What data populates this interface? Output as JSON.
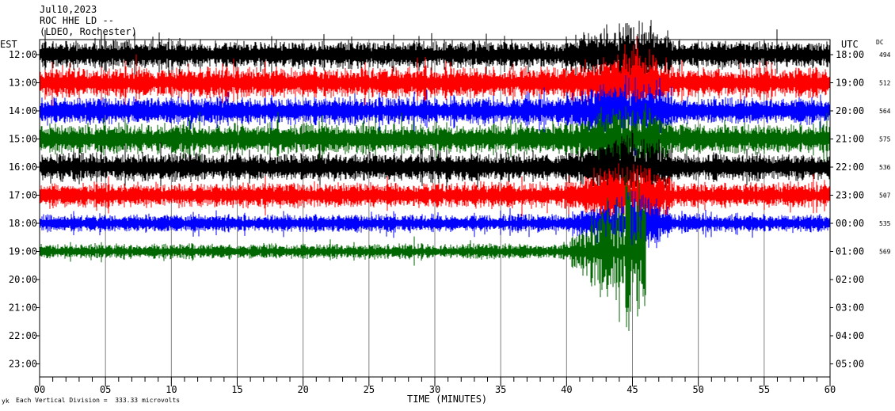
{
  "header": {
    "line1": "Jul10,2023",
    "line2": "ROC HHE LD --",
    "line3": "(LDEO, Rochester)"
  },
  "axis": {
    "left_label": "EST",
    "right_label": "UTC",
    "dc_label": "DC",
    "xlabel": "TIME (MINUTES)",
    "footer": "Each Vertical Division =  333.33 microvolts",
    "footer_mark": "yk"
  },
  "chart_data": {
    "type": "line",
    "xlabel": "TIME (MINUTES)",
    "xlim": [
      0,
      60
    ],
    "x_ticks": [
      "00",
      "05",
      "10",
      "15",
      "20",
      "25",
      "30",
      "35",
      "40",
      "45",
      "50",
      "55",
      "60"
    ],
    "left_ticks": [
      "12:00",
      "13:00",
      "14:00",
      "15:00",
      "16:00",
      "17:00",
      "18:00",
      "19:00",
      "20:00",
      "21:00",
      "22:00",
      "23:00"
    ],
    "right_ticks": [
      "18:00",
      "19:00",
      "20:00",
      "21:00",
      "22:00",
      "23:00",
      "00:00",
      "01:00",
      "02:00",
      "03:00",
      "04:00",
      "05:00"
    ],
    "dc_values": [
      "494",
      "512",
      "564",
      "575",
      "536",
      "507",
      "535",
      "569"
    ],
    "trace_colors": [
      "#000000",
      "#ff0000",
      "#0000ff",
      "#006600"
    ],
    "vertical_division_microvolts": 333.33,
    "traces": [
      {
        "hour": "12:00",
        "color": "#000000",
        "amplitude": 0.55,
        "end_minute": 60
      },
      {
        "hour": "13:00",
        "color": "#ff0000",
        "amplitude": 0.6,
        "end_minute": 60
      },
      {
        "hour": "14:00",
        "color": "#0000ff",
        "amplitude": 0.55,
        "end_minute": 60
      },
      {
        "hour": "15:00",
        "color": "#006600",
        "amplitude": 0.6,
        "end_minute": 60
      },
      {
        "hour": "16:00",
        "color": "#000000",
        "amplitude": 0.55,
        "end_minute": 60
      },
      {
        "hour": "17:00",
        "color": "#ff0000",
        "amplitude": 0.5,
        "end_minute": 60
      },
      {
        "hour": "18:00",
        "color": "#0000ff",
        "amplitude": 0.35,
        "end_minute": 60
      },
      {
        "hour": "19:00",
        "color": "#006600",
        "amplitude": 0.3,
        "end_minute": 46
      }
    ],
    "event": {
      "start_minute": 39.5,
      "peak_minute": 45,
      "end_minute": 48
    }
  }
}
